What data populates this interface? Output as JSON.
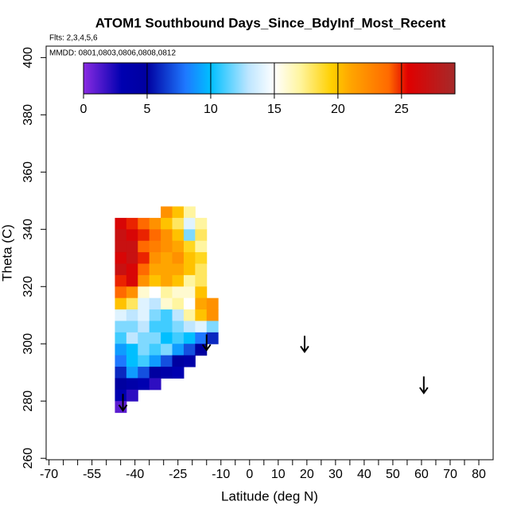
{
  "chart_data": {
    "type": "heatmap",
    "title": "ATOM1 Southbound Days_Since_BdyInf_Most_Recent",
    "subtitle": "Flts: 2,3,4,5,6",
    "annotation": "MMDD: 0801,0803,0806,0808,0812",
    "x_label": "Latitude (deg N)",
    "y_label": "Theta (C)",
    "xlim": [
      -71,
      85
    ],
    "ylim": [
      259.5,
      404
    ],
    "xticks": [
      -70,
      -55,
      -40,
      -25,
      -10,
      0,
      10,
      20,
      30,
      40,
      50,
      60,
      70,
      80
    ],
    "xminorticks": [
      -65,
      -60,
      -50,
      -45,
      -35,
      -30,
      -20,
      -15,
      -5,
      5,
      15,
      25,
      35,
      45,
      55,
      65,
      75
    ],
    "yticks": [
      260,
      280,
      300,
      320,
      340,
      360,
      380,
      400
    ],
    "x": [
      -45,
      -41,
      -37,
      -33,
      -29,
      -25,
      -21,
      -17,
      -13
    ],
    "y": [
      346,
      342,
      338,
      334,
      330,
      326,
      322,
      318,
      314,
      310,
      306,
      302,
      298,
      294,
      290,
      286,
      282,
      278
    ],
    "z": [
      [
        null,
        null,
        null,
        null,
        22,
        20,
        17,
        null,
        null
      ],
      [
        26,
        25,
        24,
        22,
        20,
        18,
        14,
        17,
        null
      ],
      [
        27,
        26,
        25,
        24,
        22,
        20,
        12,
        18,
        null
      ],
      [
        27,
        27,
        24,
        23,
        22,
        21,
        19,
        17,
        null
      ],
      [
        26,
        27,
        25,
        22,
        21,
        22,
        20,
        19,
        null
      ],
      [
        27,
        26,
        24,
        21,
        21,
        21,
        20,
        18,
        null
      ],
      [
        25,
        26,
        22,
        20,
        21,
        20,
        17,
        18,
        null
      ],
      [
        24,
        22,
        16,
        15,
        17,
        16,
        16,
        20,
        null
      ],
      [
        20,
        18,
        14,
        13,
        16,
        17,
        15,
        21,
        22
      ],
      [
        14,
        13,
        14,
        12,
        11,
        13,
        17,
        20,
        22
      ],
      [
        12,
        12,
        13,
        11,
        11,
        12,
        13,
        14,
        12
      ],
      [
        11,
        13,
        12,
        12,
        10,
        11,
        10,
        8,
        6
      ],
      [
        9,
        10,
        12,
        11,
        12,
        9,
        7,
        5,
        null
      ],
      [
        8,
        10,
        11,
        9,
        7,
        5,
        4,
        null,
        null
      ],
      [
        6,
        9,
        7,
        5,
        4,
        3,
        null,
        null,
        null
      ],
      [
        5,
        4,
        3,
        2,
        null,
        null,
        null,
        null,
        null
      ],
      [
        3,
        2,
        null,
        null,
        null,
        null,
        null,
        null,
        null
      ],
      [
        1,
        null,
        null,
        null,
        null,
        null,
        null,
        null,
        null
      ]
    ],
    "colorbar_lim": [
      0,
      29.2
    ],
    "colorbar_ticks": [
      0,
      5,
      10,
      15,
      20,
      25
    ],
    "colorscale": [
      {
        "value": 0,
        "color": "#8a2be2"
      },
      {
        "value": 3,
        "color": "#0000b0"
      },
      {
        "value": 5,
        "color": "#0000a0"
      },
      {
        "value": 8,
        "color": "#1e78ff"
      },
      {
        "value": 10,
        "color": "#00bfff"
      },
      {
        "value": 13,
        "color": "#bfe6ff"
      },
      {
        "value": 15,
        "color": "#ffffff"
      },
      {
        "value": 17,
        "color": "#fff5a0"
      },
      {
        "value": 19.5,
        "color": "#ffd000"
      },
      {
        "value": 21,
        "color": "#ffa500"
      },
      {
        "value": 24,
        "color": "#ff6a00"
      },
      {
        "value": 25.5,
        "color": "#e00000"
      },
      {
        "value": 29.2,
        "color": "#a52a2a"
      }
    ],
    "arrows": [
      {
        "lat": -44.2,
        "theta_start": 282.5,
        "theta_tip": 276.7
      },
      {
        "lat": -15,
        "theta_start": 303.3,
        "theta_tip": 297.8
      },
      {
        "lat": 19.2,
        "theta_start": 302.8,
        "theta_tip": 297.2
      },
      {
        "lat": 60.8,
        "theta_start": 288.6,
        "theta_tip": 282.8
      }
    ]
  }
}
